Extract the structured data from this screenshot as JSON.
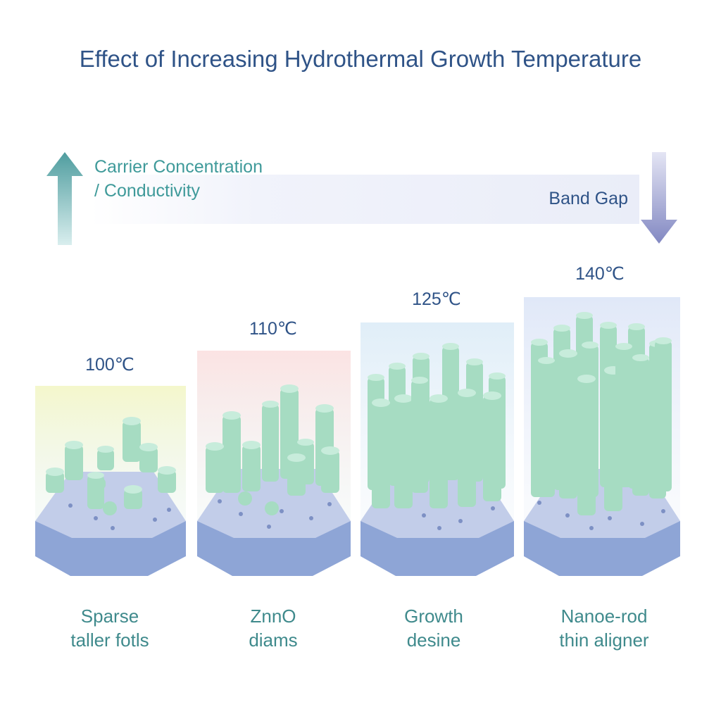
{
  "title": "Effect of Increasing Hydrothermal Growth Temperature",
  "indicators": {
    "carrier": "Carrier Concentration / Conductivity",
    "carrier_direction": "up",
    "band_gap": "Band Gap",
    "band_gap_direction": "down"
  },
  "colors": {
    "title": "#2f5387",
    "carrier": "#3f9a9a",
    "rod": "#a6dcc2",
    "substrate": "#a9b7dc",
    "arrow_up": "#5da8a8",
    "arrow_down": "#8c92c8"
  },
  "stages": [
    {
      "temperature": "100℃",
      "caption": "Sparse\ntaller fotls",
      "tint": "#f2f6c8"
    },
    {
      "temperature": "110℃",
      "caption": "ZnnO\ndiams",
      "tint": "#f8d9d9"
    },
    {
      "temperature": "125℃",
      "caption": "Growth\ndesine",
      "tint": "#dcecf6"
    },
    {
      "temperature": "140℃",
      "caption": "Nanoe-rod\nthin aligner",
      "tint": "#dde6f6"
    }
  ]
}
